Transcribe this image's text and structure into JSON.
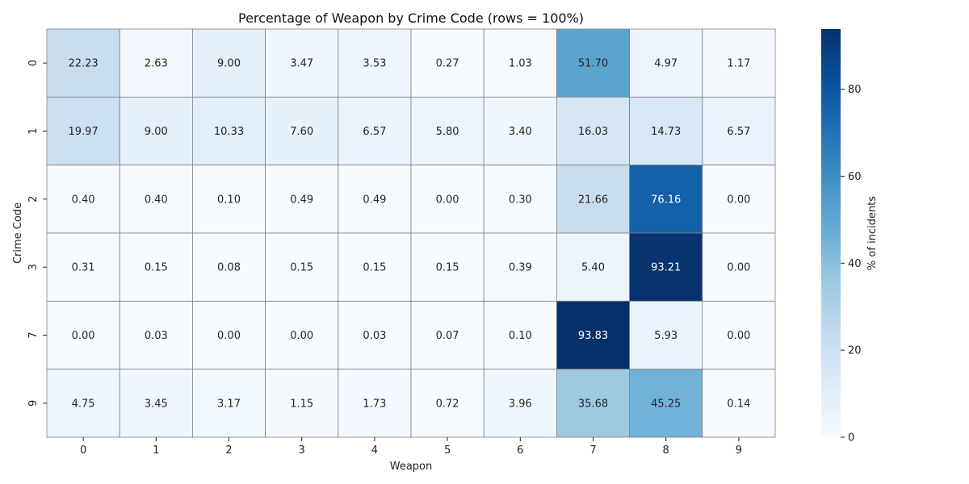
{
  "chart_data": {
    "type": "heatmap",
    "title": "Percentage of Weapon by Crime Code (rows = 100%)",
    "xlabel": "Weapon",
    "ylabel": "Crime Code",
    "x_categories": [
      "0",
      "1",
      "2",
      "3",
      "4",
      "5",
      "6",
      "7",
      "8",
      "9"
    ],
    "y_categories": [
      "0",
      "1",
      "2",
      "3",
      "7",
      "9"
    ],
    "values": [
      [
        22.23,
        2.63,
        9.0,
        3.47,
        3.53,
        0.27,
        1.03,
        51.7,
        4.97,
        1.17
      ],
      [
        19.97,
        9.0,
        10.33,
        7.6,
        6.57,
        5.8,
        3.4,
        16.03,
        14.73,
        6.57
      ],
      [
        0.4,
        0.4,
        0.1,
        0.49,
        0.49,
        0.0,
        0.3,
        21.66,
        76.16,
        0.0
      ],
      [
        0.31,
        0.15,
        0.08,
        0.15,
        0.15,
        0.15,
        0.39,
        5.4,
        93.21,
        0.0
      ],
      [
        0.0,
        0.03,
        0.0,
        0.0,
        0.03,
        0.07,
        0.1,
        93.83,
        5.93,
        0.0
      ],
      [
        4.75,
        3.45,
        3.17,
        1.15,
        1.73,
        0.72,
        3.96,
        35.68,
        45.25,
        0.14
      ]
    ],
    "value_format_decimals": 2,
    "colorbar": {
      "label": "% of incidents",
      "range": [
        0,
        93.83
      ],
      "ticks": [
        0,
        20,
        40,
        60,
        80
      ]
    },
    "colormap": "Blues",
    "cell_border_color": "#808080"
  }
}
